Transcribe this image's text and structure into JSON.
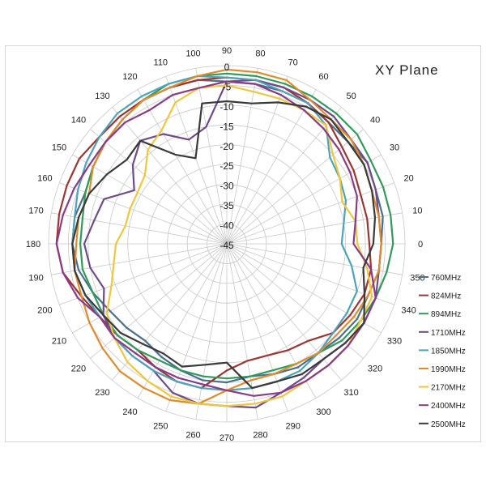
{
  "chart_data": {
    "type": "polar-line",
    "title": "XY  Plane",
    "radial_range": [
      -45,
      0
    ],
    "radial_ticks": [
      "0",
      "-5",
      "-10",
      "-15",
      "-20",
      "-25",
      "-30",
      "-35",
      "-40",
      "-45"
    ],
    "angular_ticks": [
      "0",
      "10",
      "20",
      "30",
      "40",
      "50",
      "60",
      "70",
      "80",
      "90",
      "100",
      "110",
      "120",
      "130",
      "140",
      "150",
      "160",
      "170",
      "180",
      "190",
      "200",
      "210",
      "220",
      "230",
      "240",
      "250",
      "260",
      "270",
      "280",
      "290",
      "300",
      "310",
      "320",
      "330",
      "340",
      "350"
    ],
    "legend_position": "right",
    "grid": true,
    "angles": [
      0,
      10,
      20,
      30,
      40,
      50,
      60,
      70,
      80,
      90,
      100,
      110,
      120,
      130,
      140,
      150,
      160,
      170,
      180,
      190,
      200,
      210,
      220,
      230,
      240,
      250,
      260,
      270,
      280,
      290,
      300,
      310,
      320,
      330,
      340,
      350
    ],
    "series": [
      {
        "name": "760MHz",
        "color": "#4a6f8f",
        "values": [
          -6,
          -5,
          -5,
          -4,
          -5,
          -5,
          -4,
          -4,
          -4,
          -4,
          -3,
          -3,
          -3,
          -4,
          -5,
          -6,
          -7,
          -6,
          -6,
          -7,
          -9,
          -11,
          -12,
          -13,
          -12,
          -11,
          -10,
          -10,
          -11,
          -10,
          -9,
          -9,
          -8,
          -7,
          -7,
          -6
        ]
      },
      {
        "name": "824MHz",
        "color": "#9e3432",
        "values": [
          -9,
          -9,
          -9,
          -8,
          -7,
          -5,
          -4,
          -3,
          -3,
          -3,
          -3,
          -3,
          -3,
          -3,
          -3,
          -2,
          -2,
          -2,
          -2,
          -3,
          -6,
          -8,
          -9,
          -10,
          -9,
          -8,
          -8,
          -13,
          -15,
          -15,
          -14,
          -13,
          -10,
          -9,
          -8,
          -8
        ]
      },
      {
        "name": "894MHz",
        "color": "#2f9a5a",
        "values": [
          -3,
          -3,
          -3,
          -3,
          -2,
          -2,
          -2,
          -2,
          -2,
          -2,
          -2,
          -2,
          -3,
          -4,
          -5,
          -6,
          -7,
          -8,
          -8,
          -8,
          -9,
          -9,
          -9,
          -10,
          -11,
          -11,
          -11,
          -11,
          -11,
          -11,
          -10,
          -9,
          -7,
          -6,
          -5,
          -4
        ]
      },
      {
        "name": "1710MHz",
        "color": "#6e4a8c",
        "values": [
          -6,
          -6,
          -5,
          -4,
          -4,
          -3,
          -3,
          -3,
          -3,
          -4,
          -15,
          -17,
          -13,
          -11,
          -14,
          -18,
          -12,
          -11,
          -9,
          -10,
          -12,
          -9,
          -8,
          -8,
          -8,
          -5,
          -4,
          -4,
          -3,
          -5,
          -6,
          -7,
          -6,
          -5,
          -5,
          -6
        ]
      },
      {
        "name": "1850MHz",
        "color": "#4ba3bd",
        "values": [
          -16,
          -15,
          -13,
          -12,
          -11,
          -6,
          -4,
          -4,
          -3,
          -3,
          -2,
          -2,
          -2,
          -2,
          -3,
          -4,
          -5,
          -6,
          -6,
          -6,
          -7,
          -8,
          -8,
          -8,
          -8,
          -8,
          -8,
          -8,
          -8,
          -8,
          -8,
          -9,
          -10,
          -10,
          -10,
          -13
        ]
      },
      {
        "name": "1990MHz",
        "color": "#e08c2a",
        "values": [
          -6,
          -6,
          -6,
          -5,
          -4,
          -4,
          -3,
          -1,
          -1,
          -1,
          -2,
          -3,
          -3,
          -4,
          -5,
          -6,
          -8,
          -7,
          -7,
          -6,
          -6,
          -5,
          -4,
          -3,
          -3,
          -3,
          -4,
          -8,
          -10,
          -10,
          -10,
          -9,
          -9,
          -8,
          -7,
          -6
        ]
      },
      {
        "name": "2170MHz",
        "color": "#f0c63c",
        "values": [
          -12,
          -12,
          -14,
          -12,
          -10,
          -6,
          -6,
          -6,
          -6,
          -5,
          -5,
          -7,
          -12,
          -14,
          -18,
          -19,
          -19,
          -19,
          -17,
          -16,
          -14,
          -10,
          -8,
          -6,
          -5,
          -4,
          -4,
          -4,
          -4,
          -4,
          -5,
          -5,
          -5,
          -6,
          -6,
          -9
        ]
      },
      {
        "name": "2400MHz",
        "color": "#8a3b88",
        "values": [
          -13,
          -12,
          -10,
          -9,
          -8,
          -7,
          -6,
          -5,
          -4,
          -4,
          -5,
          -5,
          -6,
          -5,
          -5,
          -5,
          -4,
          -3,
          -2,
          -3,
          -5,
          -8,
          -8,
          -9,
          -9,
          -9,
          -9,
          -8,
          -6,
          -5,
          -5,
          -5,
          -5,
          -5,
          -5,
          -8
        ]
      },
      {
        "name": "2500MHz",
        "color": "#3a3a3a",
        "values": [
          -8,
          -7,
          -6,
          -5,
          -5,
          -4,
          -5,
          -7,
          -9,
          -9,
          -9,
          -22,
          -19,
          -11,
          -12,
          -10,
          -8,
          -7,
          -6,
          -6,
          -7,
          -9,
          -10,
          -12,
          -13,
          -12,
          -14,
          -15,
          -8,
          -8,
          -7,
          -7,
          -6,
          -5,
          -8,
          -10
        ]
      }
    ]
  }
}
